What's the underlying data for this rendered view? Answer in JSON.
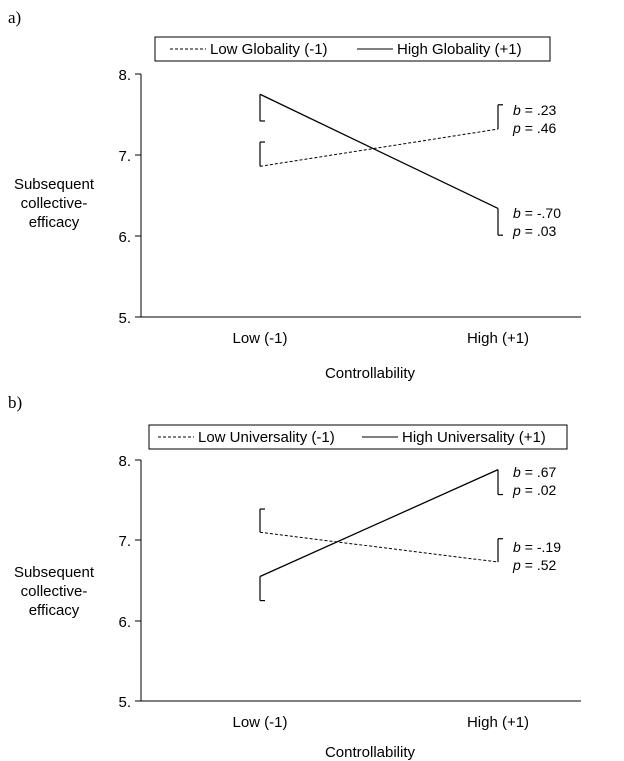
{
  "panels": [
    {
      "label": "a)",
      "legend": [
        "Low Globality (-1)",
        "High Globality (+1)"
      ],
      "ylabel_lines": [
        "Subsequent",
        "collective-",
        "efficacy"
      ],
      "xlabel": "Controllability",
      "xticks": [
        "Low (-1)",
        "High (+1)"
      ],
      "yticks": [
        "8.",
        "7.",
        "6.",
        "5."
      ],
      "stats": [
        {
          "b_label": "b",
          "b_value": "= .23",
          "p_label": "p",
          "p_value": "= .46"
        },
        {
          "b_label": "b",
          "b_value": "= -.70",
          "p_label": "p",
          "p_value": "= .03"
        }
      ]
    },
    {
      "label": "b)",
      "legend": [
        "Low Universality (-1)",
        "High Universality (+1)"
      ],
      "ylabel_lines": [
        "Subsequent",
        "collective-",
        "efficacy"
      ],
      "xlabel": "Controllability",
      "xticks": [
        "Low (-1)",
        "High (+1)"
      ],
      "yticks": [
        "8.",
        "7.",
        "6.",
        "5."
      ],
      "stats": [
        {
          "b_label": "b",
          "b_value": "= .67",
          "p_label": "p",
          "p_value": "= .02"
        },
        {
          "b_label": "b",
          "b_value": "= -.19",
          "p_label": "p",
          "p_value": "= .52"
        }
      ]
    }
  ],
  "chart_data": [
    {
      "type": "line",
      "categories": [
        "Low (-1)",
        "High (+1)"
      ],
      "ylim": [
        5,
        8
      ],
      "xlabel": "Controllability",
      "ylabel": "Subsequent collective-efficacy",
      "legend_position": "top",
      "series": [
        {
          "name": "Low Globality (-1)",
          "style": "dashed",
          "values": [
            6.86,
            7.32
          ],
          "error_upper": [
            7.16,
            7.62
          ]
        },
        {
          "name": "High Globality (+1)",
          "style": "solid",
          "values": [
            7.75,
            6.34
          ],
          "error_lower": [
            7.42,
            6.01
          ]
        }
      ]
    },
    {
      "type": "line",
      "categories": [
        "Low (-1)",
        "High (+1)"
      ],
      "ylim": [
        5,
        8
      ],
      "xlabel": "Controllability",
      "ylabel": "Subsequent collective-efficacy",
      "legend_position": "top",
      "series": [
        {
          "name": "Low Universality (-1)",
          "style": "dashed",
          "values": [
            7.1,
            6.73
          ],
          "error_upper": [
            7.39,
            7.02
          ]
        },
        {
          "name": "High Universality (+1)",
          "style": "solid",
          "values": [
            6.55,
            7.88
          ],
          "error_lower": [
            6.25,
            7.57
          ]
        }
      ]
    }
  ]
}
